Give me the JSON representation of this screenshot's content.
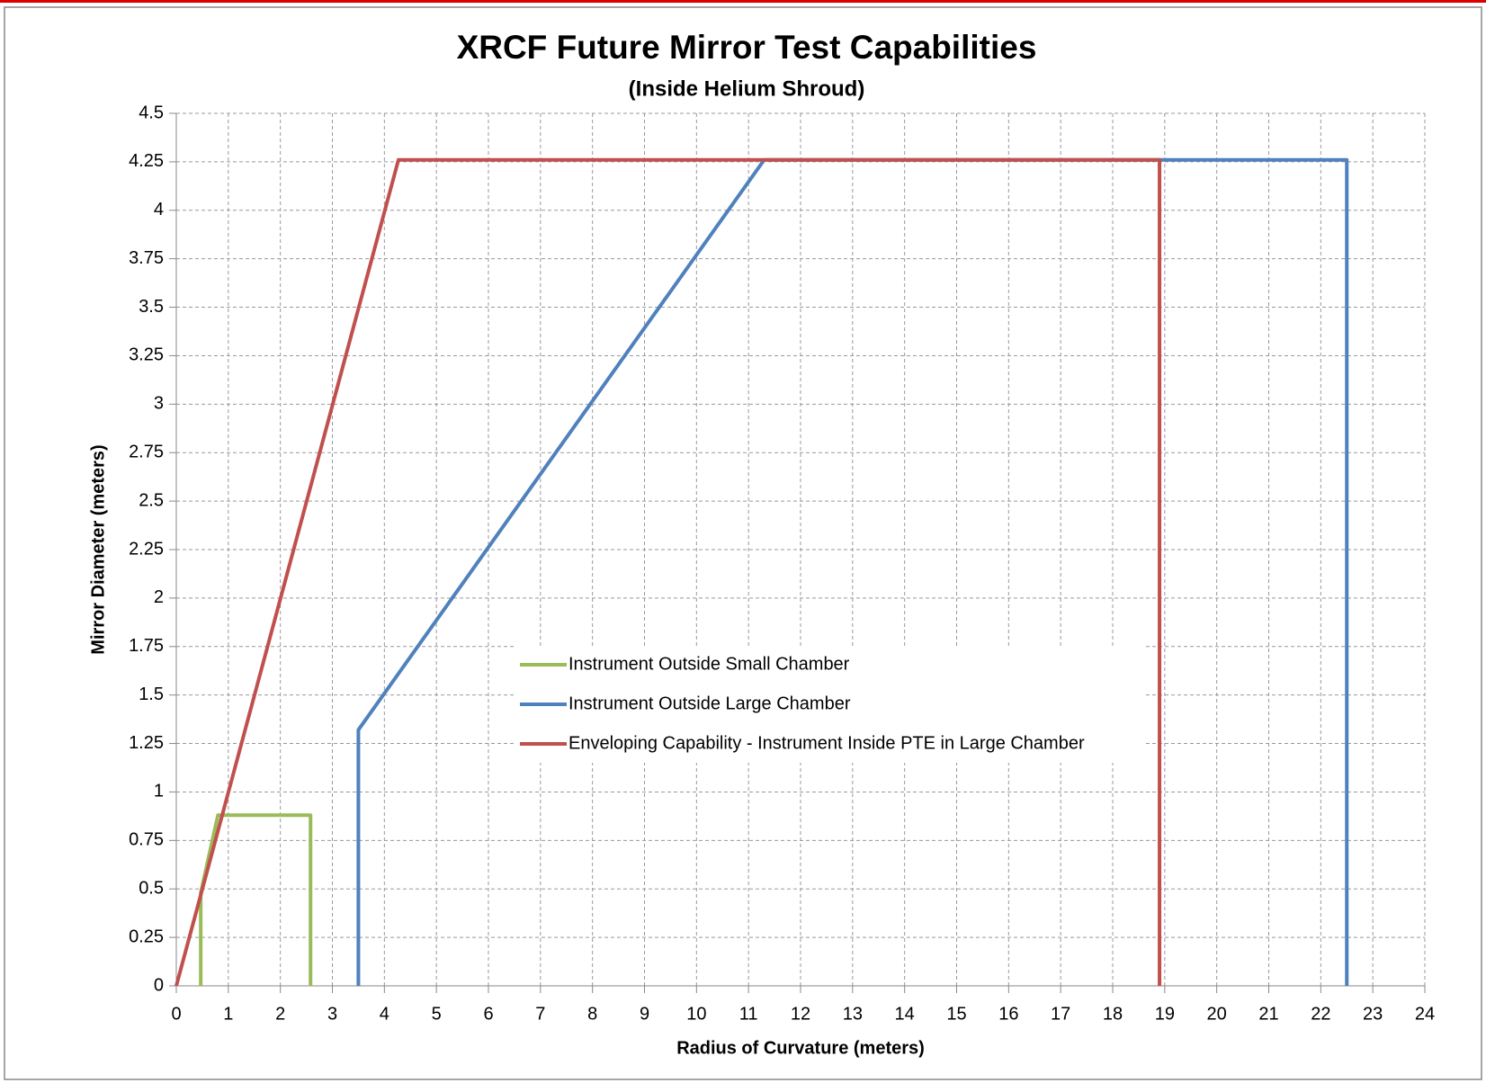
{
  "chart_data": {
    "type": "line",
    "title": "XRCF Future Mirror Test Capabilities",
    "subtitle": "(Inside Helium Shroud)",
    "x_label": "Radius of Curvature (meters)",
    "y_label": "Mirror Diameter (meters)",
    "xlim": [
      0,
      24
    ],
    "xticks": [
      0,
      1,
      2,
      3,
      4,
      5,
      6,
      7,
      8,
      9,
      10,
      11,
      12,
      13,
      14,
      15,
      16,
      17,
      18,
      19,
      20,
      21,
      22,
      23,
      24
    ],
    "ylim": [
      0,
      4.5
    ],
    "yticks": [
      0,
      0.25,
      0.5,
      0.75,
      1,
      1.25,
      1.5,
      1.75,
      2,
      2.25,
      2.5,
      2.75,
      3,
      3.25,
      3.5,
      3.75,
      4,
      4.25,
      4.5
    ],
    "grid": true,
    "legend": "center",
    "series": [
      {
        "name": "Instrument Outside Small Chamber",
        "color": "#9bbb59",
        "x": [
          0.47,
          0.47,
          0.8,
          2.58,
          2.58
        ],
        "values": [
          0,
          0.48,
          0.88,
          0.88,
          0
        ]
      },
      {
        "name": "Instrument Outside Large Chamber",
        "color": "#4f81bd",
        "x": [
          3.5,
          3.5,
          11.3,
          22.5,
          22.5
        ],
        "values": [
          0,
          1.32,
          4.26,
          4.26,
          0
        ]
      },
      {
        "name": "Enveloping Capability - Instrument Inside PTE in Large Chamber",
        "color": "#c0504d",
        "x": [
          0,
          4.27,
          18.9,
          18.9
        ],
        "values": [
          0,
          4.26,
          4.26,
          0
        ]
      }
    ]
  }
}
